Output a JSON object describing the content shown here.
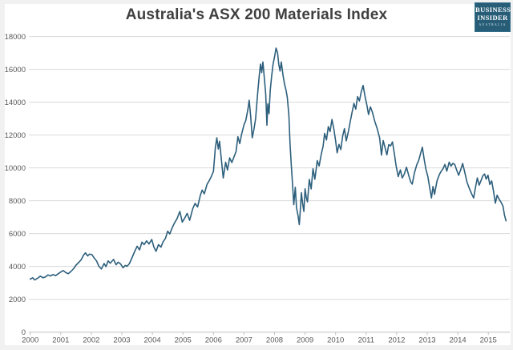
{
  "header": {
    "title": "Australia's ASX 200 Materials Index"
  },
  "logo": {
    "line1": "BUSINESS",
    "line2": "INSIDER",
    "line3": "AUSTRALIA",
    "background_color": "#275d77"
  },
  "colors": {
    "line": "#2d5f7c",
    "grid": "#d9d9d9",
    "axis": "#bfbfbf",
    "tick_label": "#595959",
    "title": "#3f3f3f"
  },
  "chart_data": {
    "type": "line",
    "title": "Australia's ASX 200 Materials Index",
    "xlabel": "",
    "ylabel": "",
    "x_range": [
      2000,
      2015.75
    ],
    "ylim": [
      0,
      18000
    ],
    "grid": true,
    "legend": "none",
    "y_tick_labels": [
      "0",
      "2000",
      "4000",
      "6000",
      "8000",
      "10000",
      "12000",
      "14000",
      "16000",
      "18000"
    ],
    "y_tick_values": [
      0,
      2000,
      4000,
      6000,
      8000,
      10000,
      12000,
      14000,
      16000,
      18000
    ],
    "x_tick_labels": [
      "2000",
      "2001",
      "2002",
      "2003",
      "2004",
      "2005",
      "2006",
      "2007",
      "2008",
      "2009",
      "2010",
      "2011",
      "2012",
      "2013",
      "2014",
      "2015"
    ],
    "x_tick_values": [
      2000,
      2001,
      2002,
      2003,
      2004,
      2005,
      2006,
      2007,
      2008,
      2009,
      2010,
      2011,
      2012,
      2013,
      2014,
      2015
    ],
    "series_name": "ASX 200 Materials Index",
    "points": [
      [
        2000.0,
        3230
      ],
      [
        2000.08,
        3310
      ],
      [
        2000.15,
        3180
      ],
      [
        2000.25,
        3290
      ],
      [
        2000.33,
        3410
      ],
      [
        2000.42,
        3310
      ],
      [
        2000.5,
        3360
      ],
      [
        2000.58,
        3480
      ],
      [
        2000.67,
        3420
      ],
      [
        2000.75,
        3510
      ],
      [
        2000.83,
        3440
      ],
      [
        2000.92,
        3560
      ],
      [
        2001.0,
        3660
      ],
      [
        2001.08,
        3750
      ],
      [
        2001.17,
        3620
      ],
      [
        2001.25,
        3560
      ],
      [
        2001.33,
        3690
      ],
      [
        2001.42,
        3860
      ],
      [
        2001.5,
        4080
      ],
      [
        2001.58,
        4230
      ],
      [
        2001.67,
        4410
      ],
      [
        2001.75,
        4700
      ],
      [
        2001.81,
        4830
      ],
      [
        2001.88,
        4640
      ],
      [
        2001.94,
        4750
      ],
      [
        2002.02,
        4720
      ],
      [
        2002.1,
        4500
      ],
      [
        2002.17,
        4340
      ],
      [
        2002.25,
        4010
      ],
      [
        2002.33,
        3850
      ],
      [
        2002.42,
        4180
      ],
      [
        2002.48,
        3990
      ],
      [
        2002.55,
        4340
      ],
      [
        2002.62,
        4200
      ],
      [
        2002.73,
        4430
      ],
      [
        2002.81,
        4100
      ],
      [
        2002.88,
        4260
      ],
      [
        2002.96,
        4150
      ],
      [
        2003.04,
        3920
      ],
      [
        2003.11,
        4060
      ],
      [
        2003.17,
        4010
      ],
      [
        2003.25,
        4180
      ],
      [
        2003.33,
        4520
      ],
      [
        2003.42,
        4910
      ],
      [
        2003.5,
        5230
      ],
      [
        2003.58,
        5010
      ],
      [
        2003.66,
        5480
      ],
      [
        2003.73,
        5330
      ],
      [
        2003.81,
        5560
      ],
      [
        2003.89,
        5370
      ],
      [
        2003.98,
        5640
      ],
      [
        2004.05,
        5180
      ],
      [
        2004.12,
        4920
      ],
      [
        2004.2,
        5330
      ],
      [
        2004.28,
        5180
      ],
      [
        2004.35,
        5490
      ],
      [
        2004.43,
        5720
      ],
      [
        2004.5,
        6150
      ],
      [
        2004.57,
        5980
      ],
      [
        2004.64,
        6320
      ],
      [
        2004.72,
        6630
      ],
      [
        2004.8,
        6880
      ],
      [
        2004.9,
        7350
      ],
      [
        2004.98,
        6700
      ],
      [
        2005.06,
        6950
      ],
      [
        2005.14,
        7230
      ],
      [
        2005.22,
        6810
      ],
      [
        2005.32,
        7510
      ],
      [
        2005.4,
        7840
      ],
      [
        2005.48,
        7620
      ],
      [
        2005.57,
        8320
      ],
      [
        2005.63,
        8650
      ],
      [
        2005.7,
        8420
      ],
      [
        2005.79,
        9000
      ],
      [
        2005.84,
        9150
      ],
      [
        2005.92,
        9440
      ],
      [
        2006.0,
        9790
      ],
      [
        2006.06,
        11200
      ],
      [
        2006.11,
        11830
      ],
      [
        2006.16,
        11150
      ],
      [
        2006.2,
        11620
      ],
      [
        2006.26,
        10500
      ],
      [
        2006.32,
        9390
      ],
      [
        2006.4,
        10350
      ],
      [
        2006.46,
        9870
      ],
      [
        2006.53,
        10610
      ],
      [
        2006.6,
        10330
      ],
      [
        2006.67,
        10650
      ],
      [
        2006.74,
        11000
      ],
      [
        2006.8,
        11900
      ],
      [
        2006.86,
        11480
      ],
      [
        2006.92,
        12050
      ],
      [
        2007.0,
        12620
      ],
      [
        2007.06,
        12900
      ],
      [
        2007.13,
        13600
      ],
      [
        2007.17,
        14120
      ],
      [
        2007.22,
        13100
      ],
      [
        2007.27,
        11830
      ],
      [
        2007.33,
        12400
      ],
      [
        2007.38,
        13000
      ],
      [
        2007.44,
        14400
      ],
      [
        2007.5,
        15600
      ],
      [
        2007.54,
        16320
      ],
      [
        2007.58,
        15800
      ],
      [
        2007.62,
        16450
      ],
      [
        2007.67,
        15400
      ],
      [
        2007.71,
        14500
      ],
      [
        2007.75,
        12600
      ],
      [
        2007.78,
        13900
      ],
      [
        2007.82,
        13300
      ],
      [
        2007.86,
        14750
      ],
      [
        2007.9,
        15500
      ],
      [
        2007.95,
        16300
      ],
      [
        2008.0,
        16750
      ],
      [
        2008.05,
        17300
      ],
      [
        2008.1,
        17000
      ],
      [
        2008.14,
        16300
      ],
      [
        2008.18,
        15900
      ],
      [
        2008.22,
        16450
      ],
      [
        2008.28,
        15600
      ],
      [
        2008.33,
        15080
      ],
      [
        2008.38,
        14700
      ],
      [
        2008.42,
        14260
      ],
      [
        2008.47,
        13200
      ],
      [
        2008.51,
        11400
      ],
      [
        2008.55,
        10100
      ],
      [
        2008.59,
        8980
      ],
      [
        2008.63,
        7760
      ],
      [
        2008.68,
        8820
      ],
      [
        2008.72,
        7590
      ],
      [
        2008.77,
        7100
      ],
      [
        2008.81,
        6550
      ],
      [
        2008.85,
        7600
      ],
      [
        2008.88,
        8490
      ],
      [
        2008.92,
        7800
      ],
      [
        2008.96,
        7350
      ],
      [
        2009.0,
        8730
      ],
      [
        2009.04,
        8200
      ],
      [
        2009.08,
        7930
      ],
      [
        2009.14,
        9300
      ],
      [
        2009.2,
        8720
      ],
      [
        2009.26,
        9950
      ],
      [
        2009.32,
        9310
      ],
      [
        2009.4,
        10440
      ],
      [
        2009.46,
        10120
      ],
      [
        2009.53,
        10830
      ],
      [
        2009.59,
        11320
      ],
      [
        2009.64,
        12100
      ],
      [
        2009.7,
        11700
      ],
      [
        2009.76,
        12520
      ],
      [
        2009.82,
        12210
      ],
      [
        2009.88,
        12950
      ],
      [
        2009.94,
        12400
      ],
      [
        2010.0,
        11650
      ],
      [
        2010.05,
        10920
      ],
      [
        2010.11,
        11430
      ],
      [
        2010.17,
        11120
      ],
      [
        2010.23,
        11940
      ],
      [
        2010.29,
        12390
      ],
      [
        2010.35,
        11650
      ],
      [
        2010.42,
        12230
      ],
      [
        2010.48,
        12830
      ],
      [
        2010.54,
        13400
      ],
      [
        2010.6,
        13930
      ],
      [
        2010.66,
        13580
      ],
      [
        2010.72,
        14340
      ],
      [
        2010.78,
        14080
      ],
      [
        2010.84,
        14640
      ],
      [
        2010.9,
        15020
      ],
      [
        2010.96,
        14380
      ],
      [
        2011.02,
        13850
      ],
      [
        2011.08,
        13250
      ],
      [
        2011.14,
        13720
      ],
      [
        2011.2,
        13420
      ],
      [
        2011.28,
        12850
      ],
      [
        2011.36,
        12400
      ],
      [
        2011.44,
        11830
      ],
      [
        2011.5,
        10780
      ],
      [
        2011.56,
        11660
      ],
      [
        2011.62,
        11230
      ],
      [
        2011.68,
        10790
      ],
      [
        2011.74,
        11420
      ],
      [
        2011.8,
        11340
      ],
      [
        2011.86,
        11580
      ],
      [
        2011.92,
        10900
      ],
      [
        2011.98,
        10150
      ],
      [
        2012.05,
        9470
      ],
      [
        2012.12,
        9880
      ],
      [
        2012.18,
        9390
      ],
      [
        2012.25,
        9620
      ],
      [
        2012.32,
        10040
      ],
      [
        2012.4,
        9510
      ],
      [
        2012.46,
        9150
      ],
      [
        2012.51,
        9010
      ],
      [
        2012.58,
        9690
      ],
      [
        2012.66,
        10200
      ],
      [
        2012.72,
        10450
      ],
      [
        2012.79,
        10930
      ],
      [
        2012.84,
        11260
      ],
      [
        2012.9,
        10520
      ],
      [
        2012.96,
        9880
      ],
      [
        2013.02,
        9470
      ],
      [
        2013.08,
        8810
      ],
      [
        2013.14,
        8170
      ],
      [
        2013.19,
        8870
      ],
      [
        2013.24,
        8390
      ],
      [
        2013.32,
        9210
      ],
      [
        2013.4,
        9600
      ],
      [
        2013.46,
        9800
      ],
      [
        2013.52,
        9960
      ],
      [
        2013.58,
        10210
      ],
      [
        2013.64,
        9800
      ],
      [
        2013.72,
        10350
      ],
      [
        2013.78,
        10110
      ],
      [
        2013.84,
        10280
      ],
      [
        2013.9,
        10210
      ],
      [
        2013.97,
        9830
      ],
      [
        2014.03,
        9550
      ],
      [
        2014.1,
        9910
      ],
      [
        2014.16,
        10270
      ],
      [
        2014.23,
        9720
      ],
      [
        2014.3,
        9150
      ],
      [
        2014.38,
        8740
      ],
      [
        2014.46,
        8400
      ],
      [
        2014.52,
        8170
      ],
      [
        2014.58,
        8810
      ],
      [
        2014.64,
        9390
      ],
      [
        2014.7,
        8950
      ],
      [
        2014.76,
        9230
      ],
      [
        2014.82,
        9510
      ],
      [
        2014.88,
        9630
      ],
      [
        2014.93,
        9320
      ],
      [
        2014.99,
        9560
      ],
      [
        2015.05,
        8990
      ],
      [
        2015.11,
        9210
      ],
      [
        2015.17,
        8580
      ],
      [
        2015.23,
        7850
      ],
      [
        2015.29,
        8340
      ],
      [
        2015.35,
        8110
      ],
      [
        2015.42,
        7900
      ],
      [
        2015.48,
        7670
      ],
      [
        2015.53,
        7120
      ],
      [
        2015.58,
        6780
      ]
    ]
  }
}
